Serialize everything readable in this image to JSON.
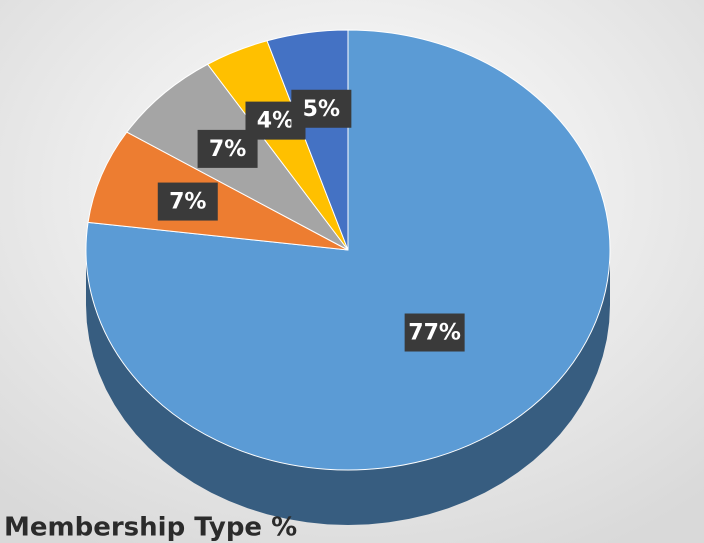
{
  "chart_data": {
    "type": "pie",
    "title": "Membership Type %",
    "values": [
      77,
      7,
      7,
      4,
      5
    ],
    "value_labels": [
      "77%",
      "7%",
      "7%",
      "4%",
      "5%"
    ],
    "colors": [
      "#5b9bd5",
      "#ed7d31",
      "#a5a5a5",
      "#ffc000",
      "#4472c4"
    ]
  }
}
